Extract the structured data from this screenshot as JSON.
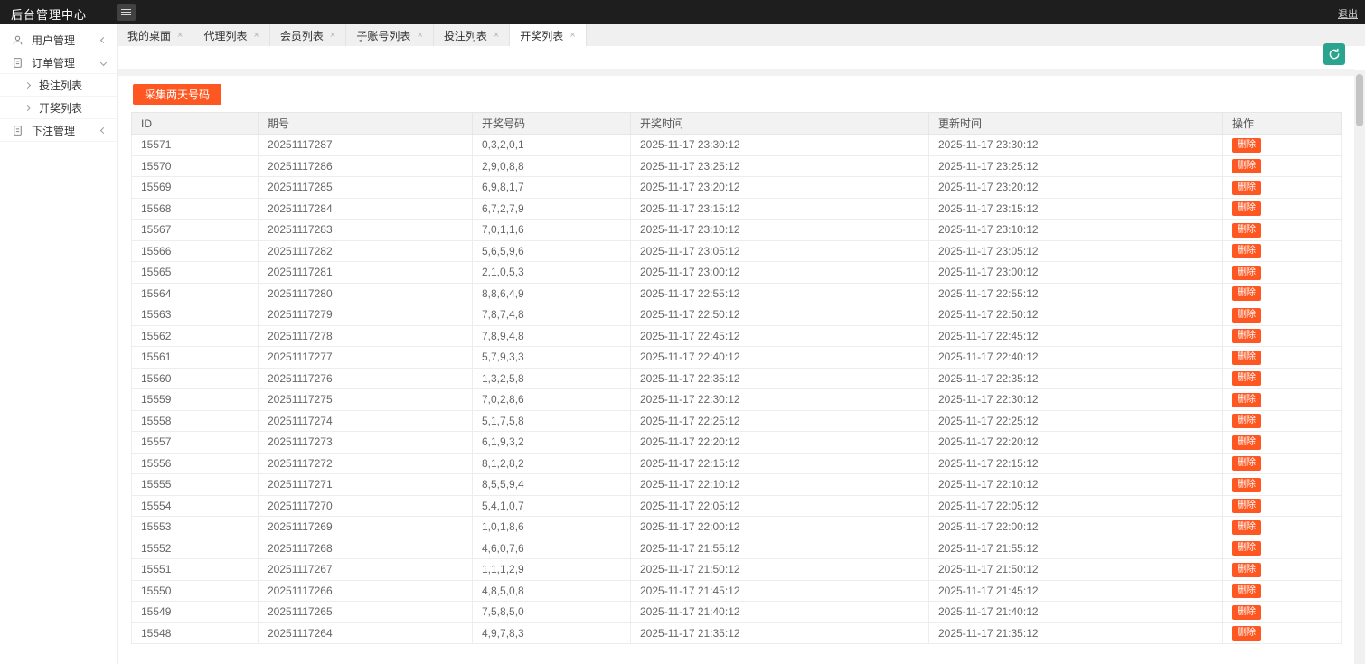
{
  "topbar": {
    "title": "后台管理中心",
    "logout_label": "退出"
  },
  "ui": {
    "close_glyph": "×",
    "colors": {
      "topbar_bg": "#1e1e1e",
      "accent_orange": "#ff5722",
      "refresh_teal": "#2aa48e",
      "tabbar_bg": "#f0f0f0",
      "table_header_bg": "#f2f2f2"
    }
  },
  "tabs": [
    {
      "name": "tab-my-desktop",
      "label": "我的桌面",
      "active": false
    },
    {
      "name": "tab-agent-list",
      "label": "代理列表",
      "active": false
    },
    {
      "name": "tab-member-list",
      "label": "会员列表",
      "active": false
    },
    {
      "name": "tab-subaccount-list",
      "label": "子账号列表",
      "active": false
    },
    {
      "name": "tab-bet-list",
      "label": "投注列表",
      "active": false
    },
    {
      "name": "tab-lottery-list",
      "label": "开奖列表",
      "active": true
    }
  ],
  "sidebar": {
    "items": [
      {
        "name": "sidebar-item-user-mgmt",
        "label": "用户管理",
        "icon": "user-icon",
        "chevron": "left",
        "children": []
      },
      {
        "name": "sidebar-item-order-mgmt",
        "label": "订单管理",
        "icon": "order-icon",
        "chevron": "down",
        "children": [
          {
            "name": "sidebar-subitem-bet-list",
            "label": "投注列表"
          },
          {
            "name": "sidebar-subitem-lottery-list",
            "label": "开奖列表"
          }
        ]
      },
      {
        "name": "sidebar-item-wager-mgmt",
        "label": "下注管理",
        "icon": "wager-icon",
        "chevron": "left",
        "children": []
      }
    ]
  },
  "content": {
    "collect_button_label": "采集两天号码",
    "table": {
      "headers": [
        "ID",
        "期号",
        "开奖号码",
        "开奖时间",
        "更新时间",
        "操作"
      ],
      "delete_button_label": "删除",
      "rows": [
        {
          "id": "15571",
          "issue": "20251117287",
          "numbers": "0,3,2,0,1",
          "draw_time": "2025-11-17 23:30:12",
          "update_time": "2025-11-17 23:30:12"
        },
        {
          "id": "15570",
          "issue": "20251117286",
          "numbers": "2,9,0,8,8",
          "draw_time": "2025-11-17 23:25:12",
          "update_time": "2025-11-17 23:25:12"
        },
        {
          "id": "15569",
          "issue": "20251117285",
          "numbers": "6,9,8,1,7",
          "draw_time": "2025-11-17 23:20:12",
          "update_time": "2025-11-17 23:20:12"
        },
        {
          "id": "15568",
          "issue": "20251117284",
          "numbers": "6,7,2,7,9",
          "draw_time": "2025-11-17 23:15:12",
          "update_time": "2025-11-17 23:15:12"
        },
        {
          "id": "15567",
          "issue": "20251117283",
          "numbers": "7,0,1,1,6",
          "draw_time": "2025-11-17 23:10:12",
          "update_time": "2025-11-17 23:10:12"
        },
        {
          "id": "15566",
          "issue": "20251117282",
          "numbers": "5,6,5,9,6",
          "draw_time": "2025-11-17 23:05:12",
          "update_time": "2025-11-17 23:05:12"
        },
        {
          "id": "15565",
          "issue": "20251117281",
          "numbers": "2,1,0,5,3",
          "draw_time": "2025-11-17 23:00:12",
          "update_time": "2025-11-17 23:00:12"
        },
        {
          "id": "15564",
          "issue": "20251117280",
          "numbers": "8,8,6,4,9",
          "draw_time": "2025-11-17 22:55:12",
          "update_time": "2025-11-17 22:55:12"
        },
        {
          "id": "15563",
          "issue": "20251117279",
          "numbers": "7,8,7,4,8",
          "draw_time": "2025-11-17 22:50:12",
          "update_time": "2025-11-17 22:50:12"
        },
        {
          "id": "15562",
          "issue": "20251117278",
          "numbers": "7,8,9,4,8",
          "draw_time": "2025-11-17 22:45:12",
          "update_time": "2025-11-17 22:45:12"
        },
        {
          "id": "15561",
          "issue": "20251117277",
          "numbers": "5,7,9,3,3",
          "draw_time": "2025-11-17 22:40:12",
          "update_time": "2025-11-17 22:40:12"
        },
        {
          "id": "15560",
          "issue": "20251117276",
          "numbers": "1,3,2,5,8",
          "draw_time": "2025-11-17 22:35:12",
          "update_time": "2025-11-17 22:35:12"
        },
        {
          "id": "15559",
          "issue": "20251117275",
          "numbers": "7,0,2,8,6",
          "draw_time": "2025-11-17 22:30:12",
          "update_time": "2025-11-17 22:30:12"
        },
        {
          "id": "15558",
          "issue": "20251117274",
          "numbers": "5,1,7,5,8",
          "draw_time": "2025-11-17 22:25:12",
          "update_time": "2025-11-17 22:25:12"
        },
        {
          "id": "15557",
          "issue": "20251117273",
          "numbers": "6,1,9,3,2",
          "draw_time": "2025-11-17 22:20:12",
          "update_time": "2025-11-17 22:20:12"
        },
        {
          "id": "15556",
          "issue": "20251117272",
          "numbers": "8,1,2,8,2",
          "draw_time": "2025-11-17 22:15:12",
          "update_time": "2025-11-17 22:15:12"
        },
        {
          "id": "15555",
          "issue": "20251117271",
          "numbers": "8,5,5,9,4",
          "draw_time": "2025-11-17 22:10:12",
          "update_time": "2025-11-17 22:10:12"
        },
        {
          "id": "15554",
          "issue": "20251117270",
          "numbers": "5,4,1,0,7",
          "draw_time": "2025-11-17 22:05:12",
          "update_time": "2025-11-17 22:05:12"
        },
        {
          "id": "15553",
          "issue": "20251117269",
          "numbers": "1,0,1,8,6",
          "draw_time": "2025-11-17 22:00:12",
          "update_time": "2025-11-17 22:00:12"
        },
        {
          "id": "15552",
          "issue": "20251117268",
          "numbers": "4,6,0,7,6",
          "draw_time": "2025-11-17 21:55:12",
          "update_time": "2025-11-17 21:55:12"
        },
        {
          "id": "15551",
          "issue": "20251117267",
          "numbers": "1,1,1,2,9",
          "draw_time": "2025-11-17 21:50:12",
          "update_time": "2025-11-17 21:50:12"
        },
        {
          "id": "15550",
          "issue": "20251117266",
          "numbers": "4,8,5,0,8",
          "draw_time": "2025-11-17 21:45:12",
          "update_time": "2025-11-17 21:45:12"
        },
        {
          "id": "15549",
          "issue": "20251117265",
          "numbers": "7,5,8,5,0",
          "draw_time": "2025-11-17 21:40:12",
          "update_time": "2025-11-17 21:40:12"
        },
        {
          "id": "15548",
          "issue": "20251117264",
          "numbers": "4,9,7,8,3",
          "draw_time": "2025-11-17 21:35:12",
          "update_time": "2025-11-17 21:35:12"
        }
      ]
    }
  }
}
